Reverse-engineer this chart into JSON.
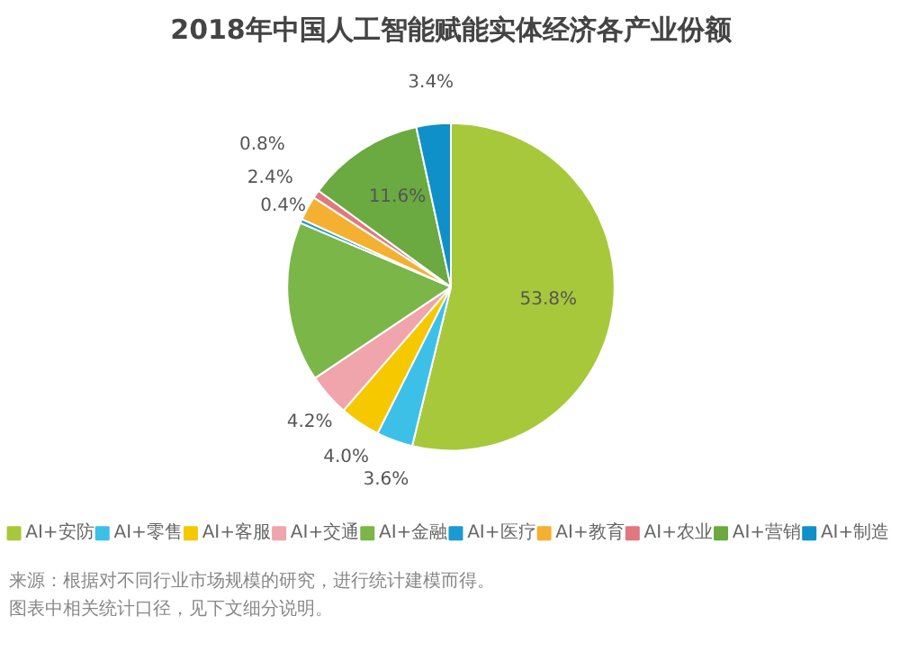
{
  "chart_data": {
    "type": "pie",
    "title": "2018年中国人工智能赋能实体经济各产业份额",
    "categories": [
      "AI+安防",
      "AI+零售",
      "AI+客服",
      "AI+交通",
      "AI+金融",
      "AI+医疗",
      "AI+教育",
      "AI+农业",
      "AI+营销",
      "AI+制造"
    ],
    "values": [
      53.8,
      3.6,
      4.0,
      4.2,
      15.8,
      0.4,
      2.4,
      0.8,
      11.6,
      3.4
    ],
    "value_labels": [
      "53.8%",
      "3.6%",
      "4.0%",
      "4.2%",
      null,
      "0.4%",
      "2.4%",
      "0.8%",
      "11.6%",
      "3.4%"
    ],
    "colors": [
      "#a8c83c",
      "#3cc0e8",
      "#f6c800",
      "#f0a4ac",
      "#7ab648",
      "#1a9ad0",
      "#f4b030",
      "#e07880",
      "#6aaa40",
      "#1090c8"
    ],
    "legend": "bottom",
    "annotations": [
      "来源：根据对不同行业市场规模的研究，进行统计建模而得。",
      "图表中相关统计口径，见下文细分说明。"
    ]
  }
}
